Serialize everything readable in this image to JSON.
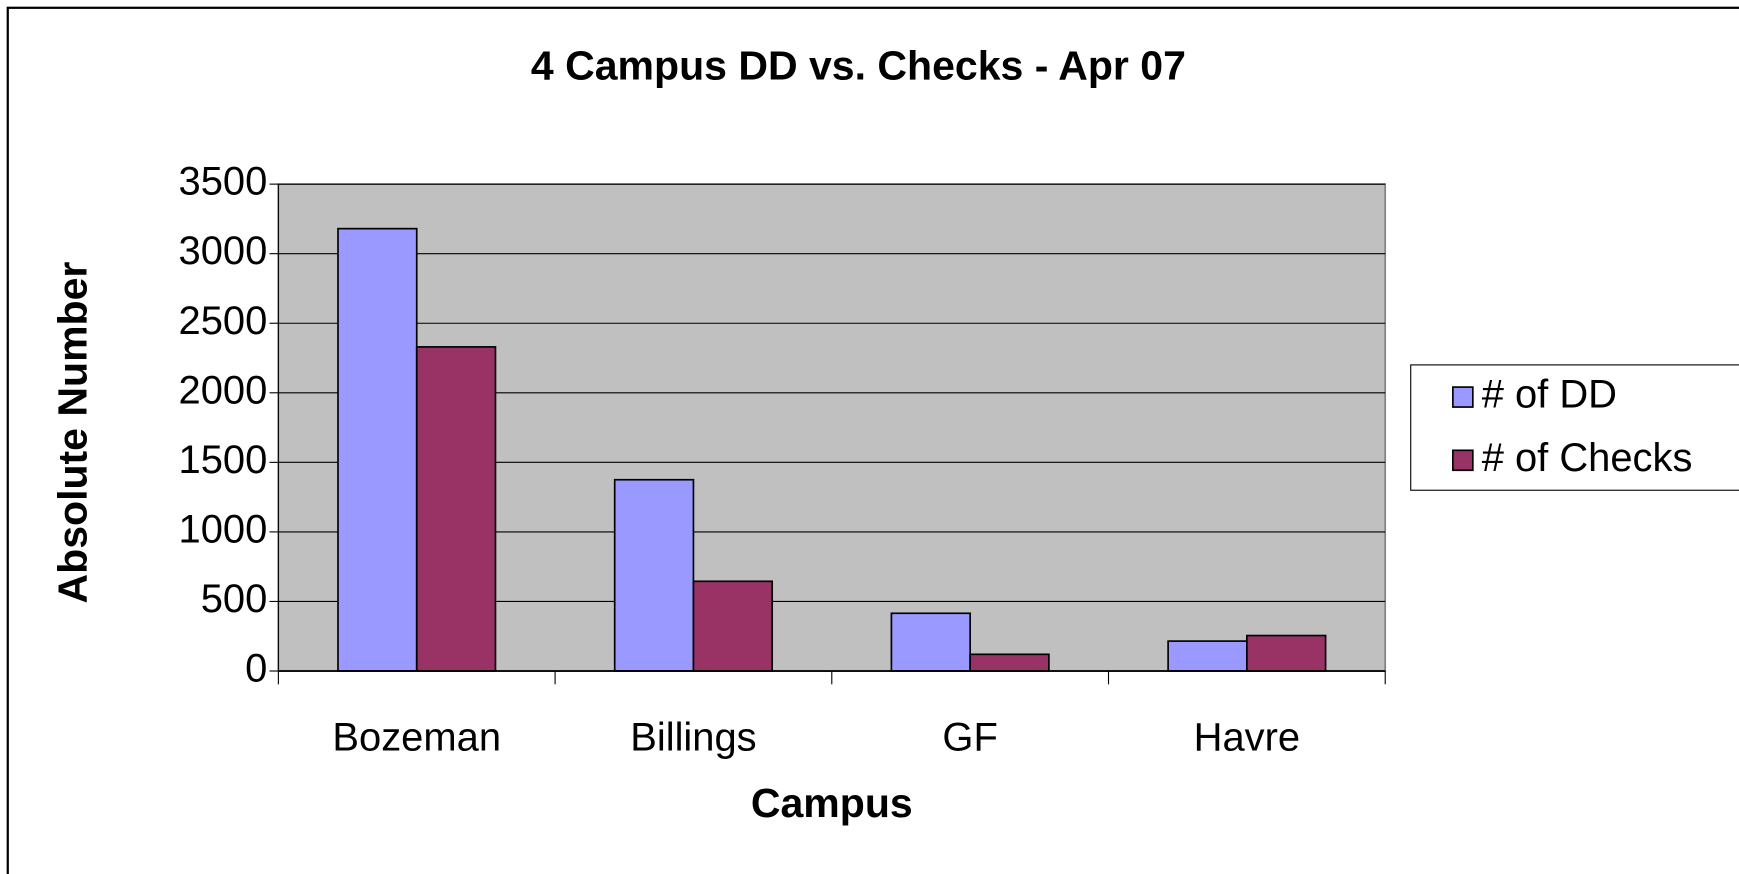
{
  "chart_data": {
    "type": "bar",
    "title": "4 Campus DD vs. Checks - Apr 07",
    "x_label": "Campus",
    "y_label": "Absolute Number",
    "categories": [
      "Bozeman",
      "Billings",
      "GF",
      "Havre"
    ],
    "series": [
      {
        "name": "# of DD",
        "color": "#9999ff",
        "values": [
          3180,
          1375,
          415,
          215
        ]
      },
      {
        "name": "# of Checks",
        "color": "#993366",
        "values": [
          2330,
          645,
          120,
          255
        ]
      }
    ],
    "ylim": [
      0,
      3500
    ],
    "yticks": [
      0,
      500,
      1000,
      1500,
      2000,
      2500,
      3000,
      3500
    ],
    "grid": true,
    "legend": "right"
  }
}
